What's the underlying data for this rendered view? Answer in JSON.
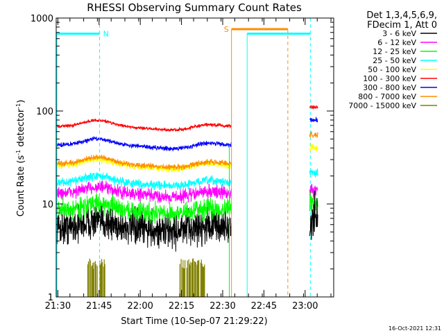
{
  "chart_data": {
    "type": "line",
    "title": "RHESSI Observing Summary Count Rates",
    "xlabel": "Start Time (10-Sep-07 21:29:22)",
    "ylabel_main": "Count Rate (s",
    "ylabel_sup1": "-1",
    "ylabel_mid": " detector",
    "ylabel_sup2": "-1",
    "ylabel_end": ")",
    "yscale": "log",
    "ylim": [
      1,
      1000
    ],
    "xlim_minutes": [
      0,
      101
    ],
    "x_ticks": [
      {
        "m": 0.6,
        "label": "21:30"
      },
      {
        "m": 15.6,
        "label": "21:45"
      },
      {
        "m": 30.6,
        "label": "22:00"
      },
      {
        "m": 45.6,
        "label": "22:15"
      },
      {
        "m": 60.6,
        "label": "22:30"
      },
      {
        "m": 75.6,
        "label": "22:45"
      },
      {
        "m": 90.6,
        "label": "23:00"
      }
    ],
    "y_ticks": [
      {
        "v": 1,
        "label": "1"
      },
      {
        "v": 10,
        "label": "10"
      },
      {
        "v": 100,
        "label": "100"
      },
      {
        "v": 1000,
        "label": "1000"
      }
    ],
    "legend_header": [
      "Det 1,3,4,5,6,9,",
      "FDecim 1, Att 0"
    ],
    "series": [
      {
        "name": "3 - 6 keV",
        "color": "#000000",
        "base": 5.6,
        "noise": 0.16
      },
      {
        "name": "6 - 12 keV",
        "color": "#ff00ff",
        "base": 13,
        "noise": 0.06
      },
      {
        "name": "12 - 25 keV",
        "color": "#00ff00",
        "base": 8.6,
        "noise": 0.09
      },
      {
        "name": "25 - 50 keV",
        "color": "#00ffff",
        "base": 17,
        "noise": 0.04
      },
      {
        "name": "50 - 100 keV",
        "color": "#ffff00",
        "base": 26,
        "noise": 0.03
      },
      {
        "name": "100 - 300 keV",
        "color": "#ff0000",
        "base": 68,
        "noise": 0.015
      },
      {
        "name": "300 - 800 keV",
        "color": "#0000ff",
        "base": 43,
        "noise": 0.02
      },
      {
        "name": "800 - 7000 keV",
        "color": "#ff8c00",
        "base": 27,
        "noise": 0.025
      },
      {
        "name": "7000 - 15000 keV",
        "color": "#808000",
        "base": 1,
        "noise": 0
      }
    ],
    "end_values": [
      {
        "series": "100 - 300 keV",
        "v": 110
      },
      {
        "series": "300 - 800 keV",
        "v": 80
      },
      {
        "series": "800 - 7000 keV",
        "v": 55
      },
      {
        "series": "50 - 100 keV",
        "v": 40
      },
      {
        "series": "25 - 50 keV",
        "v": 22
      },
      {
        "series": "6 - 12 keV",
        "v": 14
      },
      {
        "series": "12 - 25 keV",
        "v": 10
      },
      {
        "series": "3 - 6 keV",
        "v": 7
      }
    ],
    "flags": [
      {
        "label": "N",
        "color": "#00ffff",
        "x_start": 0,
        "x_end": 15.8,
        "level": 680
      },
      {
        "label": "S",
        "color": "#ff8c00",
        "x_start": 63.8,
        "x_end": 84.3,
        "level": 760
      },
      {
        "label": "",
        "color": "#00ffff",
        "x_start": 69.5,
        "x_end": 84.3,
        "level": 680
      },
      {
        "label": "",
        "color": "#00ffff",
        "x_start": 84.3,
        "x_end": 92.5,
        "level": 680
      }
    ],
    "night_intervals_minutes": [
      [
        0,
        15.8
      ],
      [
        69.5,
        92.5
      ]
    ],
    "saa_interval_minutes": [
      63.8,
      84.3
    ],
    "timestamp": "16-Oct-2021 12:31"
  }
}
